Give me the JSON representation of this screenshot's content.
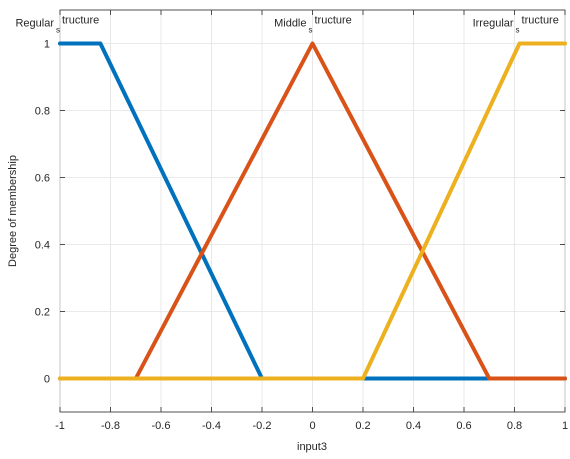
{
  "chart_data": {
    "type": "line",
    "xlabel": "input3",
    "ylabel": "Degree of membership",
    "xlim": [
      -1,
      1
    ],
    "ylim": [
      -0.1,
      1.1
    ],
    "xticks": [
      -1,
      -0.8,
      -0.6,
      -0.4,
      -0.2,
      0,
      0.2,
      0.4,
      0.6,
      0.8,
      1
    ],
    "xtick_labels": [
      "-1",
      "-0.8",
      "-0.6",
      "-0.4",
      "-0.2",
      "0",
      "0.2",
      "0.4",
      "0.6",
      "0.8",
      "1"
    ],
    "yticks": [
      0,
      0.2,
      0.4,
      0.6,
      0.8,
      1
    ],
    "ytick_labels": [
      "0",
      "0.2",
      "0.4",
      "0.6",
      "0.8",
      "1"
    ],
    "grid": true,
    "series": [
      {
        "label_main": "Regular",
        "label_sub": "s",
        "label_tail": "tructure",
        "color": "#0072BD",
        "x": [
          -1,
          -0.84,
          -0.2,
          1
        ],
        "y": [
          1,
          1,
          0,
          0
        ]
      },
      {
        "label_main": "Middle",
        "label_sub": "s",
        "label_tail": "tructure",
        "color": "#D95319",
        "x": [
          -1,
          -0.7,
          0,
          0.7,
          1
        ],
        "y": [
          0,
          0,
          1,
          0,
          0
        ]
      },
      {
        "label_main": "Irregular",
        "label_sub": "s",
        "label_tail": "tructure",
        "color": "#EDB120",
        "x": [
          -1,
          0.2,
          0.82,
          1
        ],
        "y": [
          0,
          0,
          1,
          1
        ]
      }
    ]
  }
}
